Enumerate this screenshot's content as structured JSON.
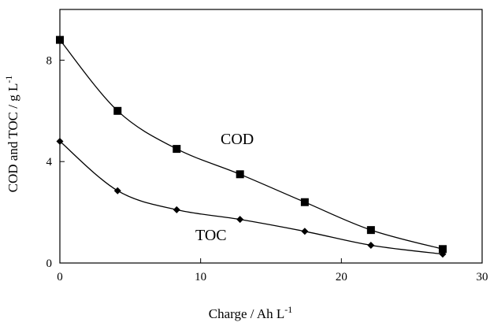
{
  "chart_data": {
    "type": "line",
    "xlabel": "Charge / Ah L",
    "xlabel_sup": "-1",
    "ylabel": "COD and TOC / g L",
    "ylabel_sup": "-1",
    "xlim": [
      0,
      30
    ],
    "ylim": [
      0,
      10
    ],
    "x_ticks": [
      0,
      10,
      20,
      30
    ],
    "y_ticks": [
      0,
      4,
      8
    ],
    "grid": false,
    "series": [
      {
        "name": "COD",
        "marker": "square",
        "color": "#000000",
        "points": [
          {
            "x": 0,
            "y": 8.8
          },
          {
            "x": 4.1,
            "y": 6.0
          },
          {
            "x": 8.3,
            "y": 4.5
          },
          {
            "x": 12.8,
            "y": 3.5
          },
          {
            "x": 17.4,
            "y": 2.4
          },
          {
            "x": 22.1,
            "y": 1.3
          },
          {
            "x": 27.2,
            "y": 0.55
          }
        ]
      },
      {
        "name": "TOC",
        "marker": "diamond",
        "color": "#000000",
        "points": [
          {
            "x": 0,
            "y": 4.8
          },
          {
            "x": 4.1,
            "y": 2.85
          },
          {
            "x": 8.3,
            "y": 2.1
          },
          {
            "x": 12.8,
            "y": 1.72
          },
          {
            "x": 17.4,
            "y": 1.25
          },
          {
            "x": 22.1,
            "y": 0.7
          },
          {
            "x": 27.2,
            "y": 0.35
          }
        ]
      }
    ]
  }
}
